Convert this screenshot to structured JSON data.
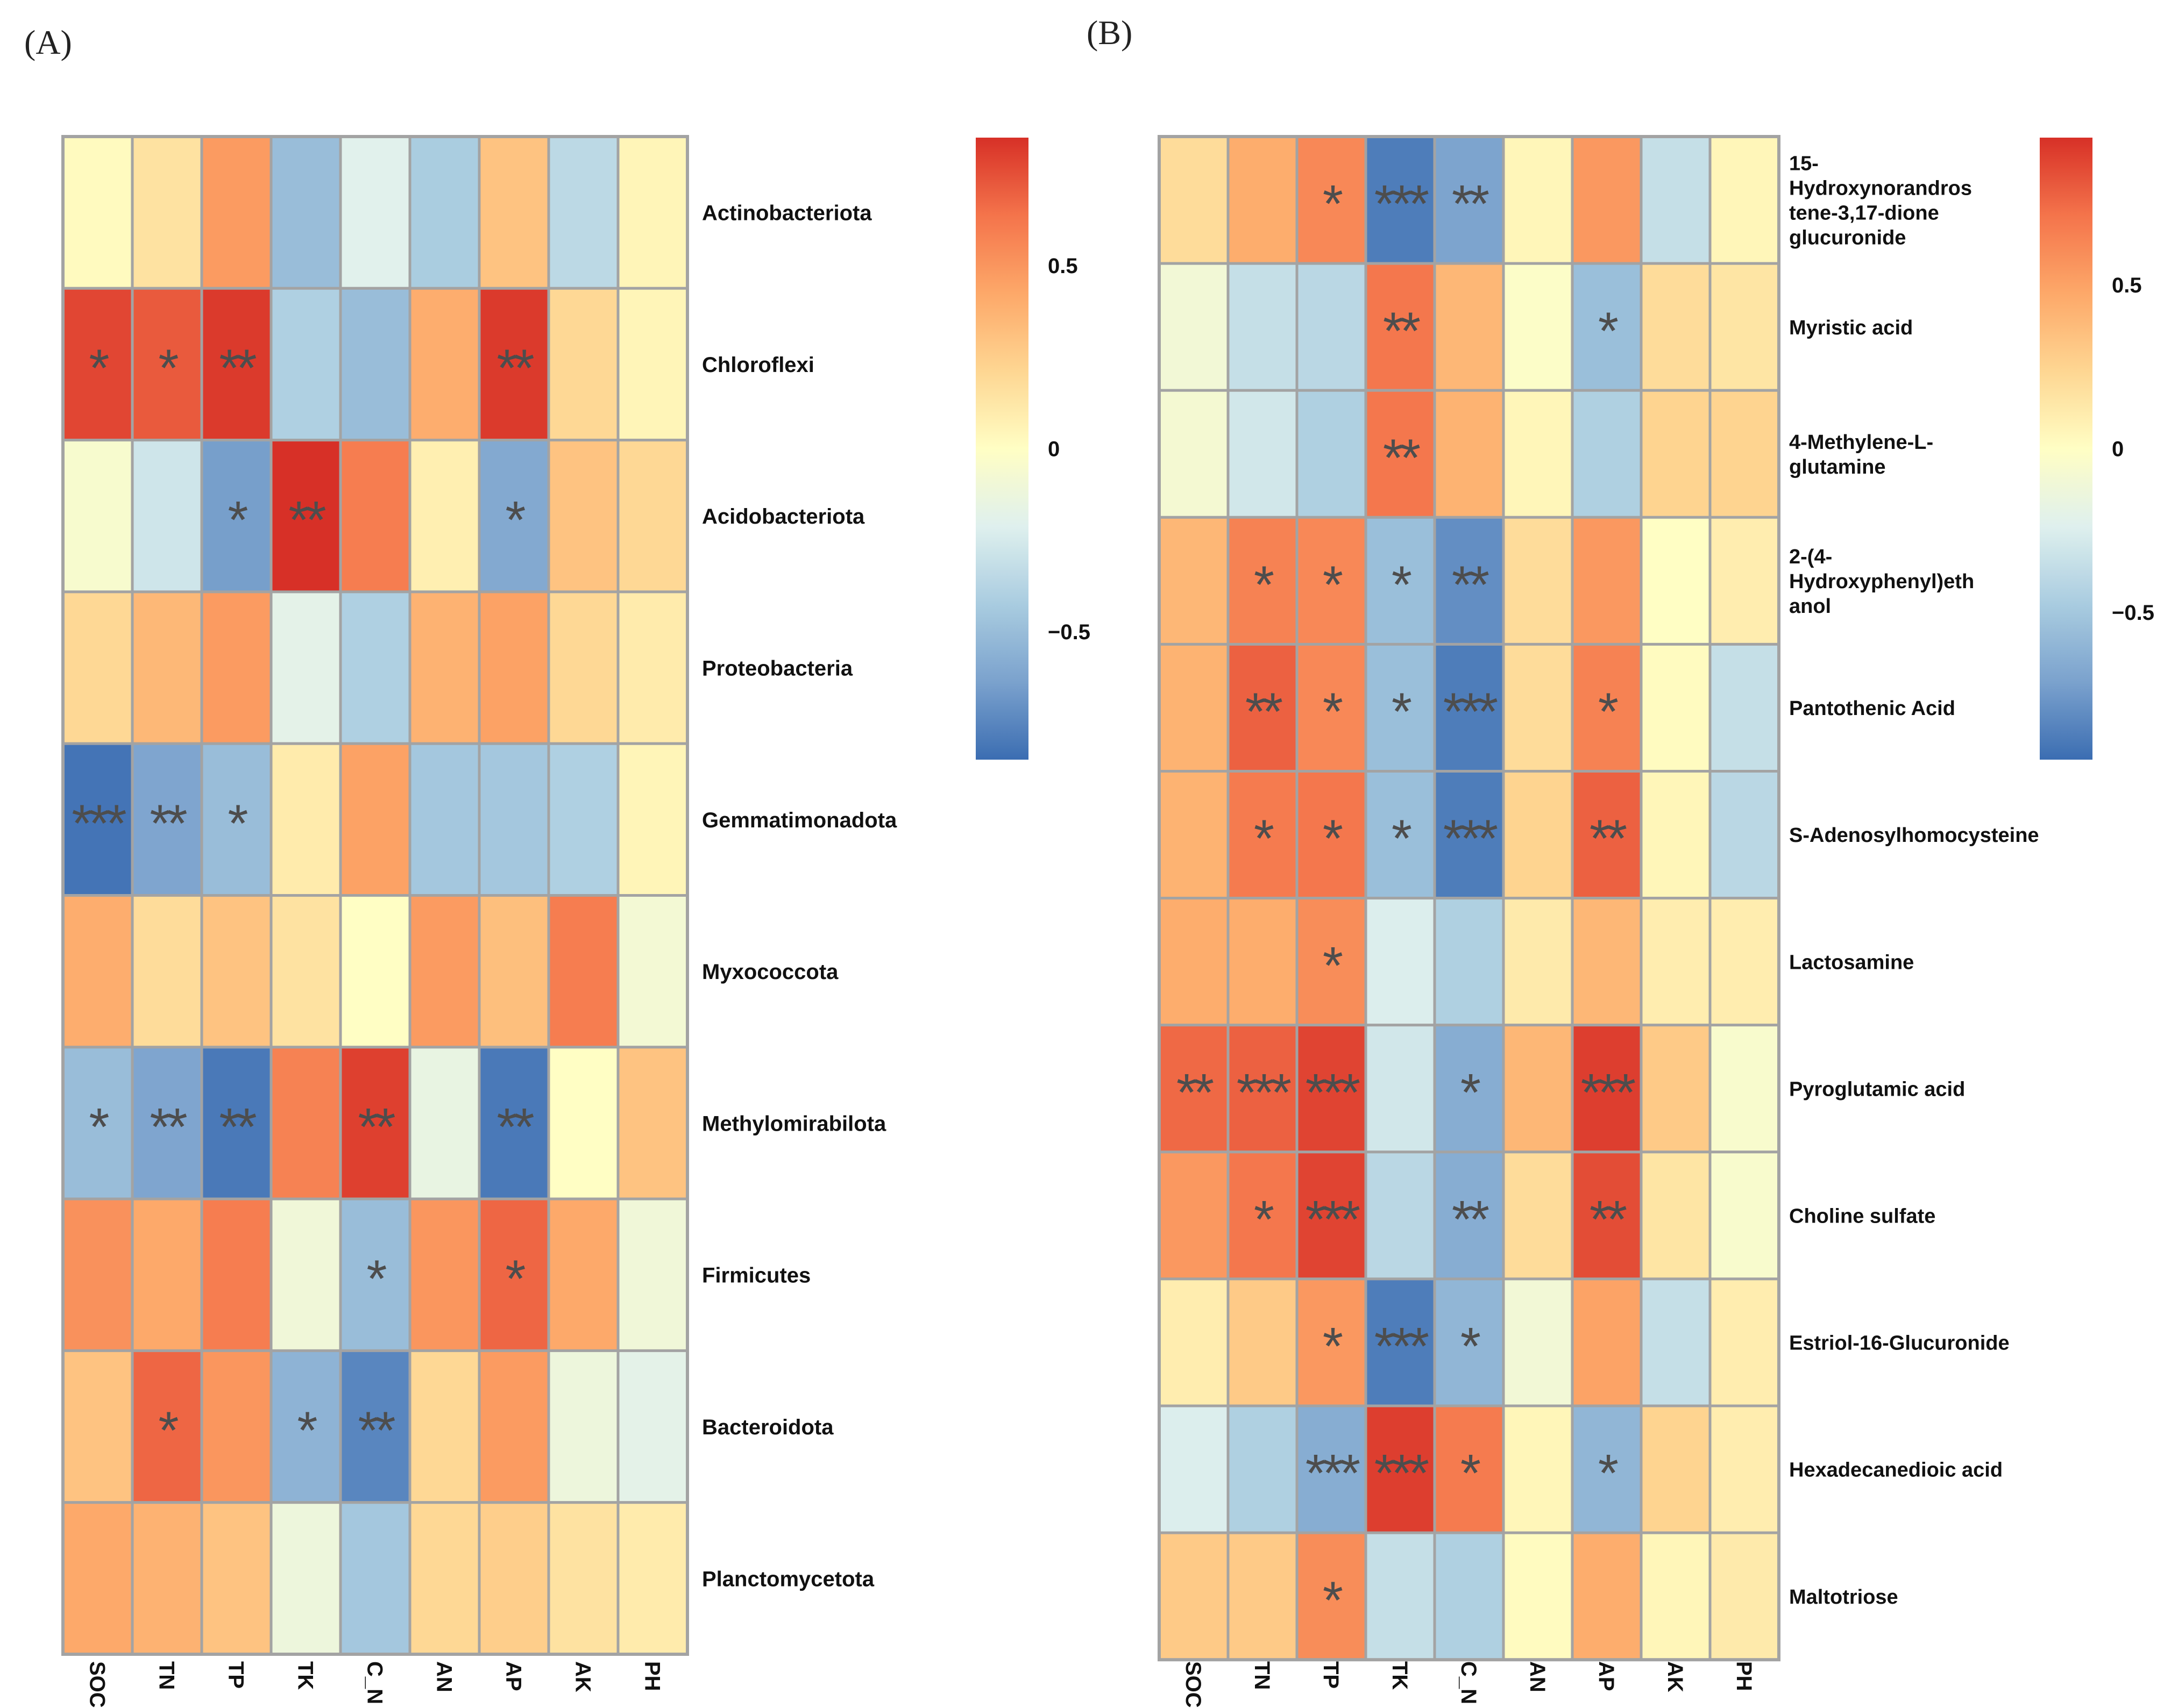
{
  "figure": {
    "panel_labels": [
      "(A)",
      "(B)"
    ]
  },
  "colors": {
    "grid_border": "#a3a3a3",
    "star": "#4d4d4d",
    "text": "#111111",
    "scale": [
      "#3b6db2",
      "#7ba2cd",
      "#a9cce0",
      "#dff0ee",
      "#fffec4",
      "#fed692",
      "#fda869",
      "#f4744b",
      "#d73027"
    ]
  },
  "chart_data": [
    {
      "type": "heatmap",
      "panel": "(A)",
      "title": "",
      "columns": [
        "SOC",
        "TN",
        "TP",
        "TK",
        "C_N",
        "AN",
        "AP",
        "AK",
        "PH"
      ],
      "rows": [
        "Actinobacteriota",
        "Chloroflexi",
        "Acidobacteriota",
        "Proteobacteria",
        "Gemmatimonadota",
        "Myxococcota",
        "Methylomirabilota",
        "Firmicutes",
        "Bacteroidota",
        "Planctomycetota"
      ],
      "values": [
        [
          0.02,
          0.15,
          0.48,
          -0.5,
          -0.2,
          -0.42,
          0.3,
          -0.35,
          0.05
        ],
        [
          0.78,
          0.72,
          0.82,
          -0.4,
          -0.5,
          0.4,
          0.82,
          0.2,
          0.05
        ],
        [
          -0.05,
          -0.28,
          -0.65,
          0.85,
          0.6,
          0.08,
          -0.6,
          0.3,
          0.2
        ],
        [
          0.2,
          0.35,
          0.48,
          -0.18,
          -0.4,
          0.38,
          0.45,
          0.2,
          0.1
        ],
        [
          -0.82,
          -0.62,
          -0.5,
          0.1,
          0.45,
          -0.45,
          -0.45,
          -0.4,
          0.05
        ],
        [
          0.4,
          0.18,
          0.3,
          0.15,
          0.0,
          0.48,
          0.32,
          0.6,
          -0.08
        ],
        [
          -0.5,
          -0.62,
          -0.8,
          0.58,
          0.8,
          -0.15,
          -0.8,
          0.0,
          0.3
        ],
        [
          0.52,
          0.42,
          0.6,
          -0.1,
          -0.5,
          0.5,
          0.68,
          0.42,
          -0.1
        ],
        [
          0.3,
          0.68,
          0.5,
          -0.55,
          -0.75,
          0.2,
          0.48,
          -0.12,
          -0.18
        ],
        [
          0.42,
          0.38,
          0.3,
          -0.12,
          -0.45,
          0.2,
          0.25,
          0.15,
          0.1
        ]
      ],
      "stars": [
        [
          "",
          "",
          "",
          "",
          "",
          "",
          "",
          "",
          ""
        ],
        [
          "*",
          "*",
          "**",
          "",
          "",
          "",
          "**",
          "",
          ""
        ],
        [
          "",
          "",
          "*",
          "**",
          "",
          "",
          "*",
          "",
          ""
        ],
        [
          "",
          "",
          "",
          "",
          "",
          "",
          "",
          "",
          ""
        ],
        [
          "***",
          "**",
          "*",
          "",
          "",
          "",
          "",
          "",
          ""
        ],
        [
          "",
          "",
          "",
          "",
          "",
          "",
          "",
          "",
          ""
        ],
        [
          "*",
          "**",
          "**",
          "",
          "**",
          "",
          "**",
          "",
          ""
        ],
        [
          "",
          "",
          "",
          "",
          "*",
          "",
          "*",
          "",
          ""
        ],
        [
          "",
          "*",
          "",
          "*",
          "**",
          "",
          "",
          "",
          ""
        ],
        [
          "",
          "",
          "",
          "",
          "",
          "",
          "",
          "",
          ""
        ]
      ],
      "colorbar": {
        "range": [
          -0.85,
          0.85
        ],
        "ticks": [
          0.5,
          0,
          -0.5
        ],
        "tick_labels": [
          "0.5",
          "0",
          "−0.5"
        ]
      }
    },
    {
      "type": "heatmap",
      "panel": "(B)",
      "title": "",
      "columns": [
        "SOC",
        "TN",
        "TP",
        "TK",
        "C_N",
        "AN",
        "AP",
        "AK",
        "PH"
      ],
      "rows": [
        [
          "15-",
          "Hydroxynorandros",
          "tene-3,17-dione",
          "glucuronide"
        ],
        [
          "Myristic acid"
        ],
        [
          "4-Methylene-L-",
          "glutamine"
        ],
        [
          "2-(4-",
          "Hydroxyphenyl)eth",
          "anol"
        ],
        [
          "Pantothenic Acid"
        ],
        [
          "S-Adenosylhomocysteine"
        ],
        [
          "Lactosamine"
        ],
        [
          "Pyroglutamic acid"
        ],
        [
          "Choline sulfate"
        ],
        [
          "Estriol-16-Glucuronide"
        ],
        [
          "Hexadecanedioic acid"
        ],
        [
          "Maltotriose"
        ]
      ],
      "values": [
        [
          0.2,
          0.45,
          0.62,
          -0.88,
          -0.7,
          0.05,
          0.55,
          -0.35,
          0.05
        ],
        [
          -0.1,
          -0.35,
          -0.4,
          0.7,
          0.4,
          -0.02,
          -0.55,
          0.2,
          0.15
        ],
        [
          -0.08,
          -0.3,
          -0.45,
          0.7,
          0.42,
          0.05,
          -0.45,
          0.25,
          0.25
        ],
        [
          0.4,
          0.65,
          0.62,
          -0.55,
          -0.8,
          0.2,
          0.55,
          0.0,
          0.1
        ],
        [
          0.42,
          0.78,
          0.62,
          -0.55,
          -0.88,
          0.2,
          0.65,
          0.02,
          -0.35
        ],
        [
          0.42,
          0.68,
          0.7,
          -0.55,
          -0.88,
          0.25,
          0.78,
          0.05,
          -0.4
        ],
        [
          0.45,
          0.45,
          0.6,
          -0.25,
          -0.45,
          0.12,
          0.4,
          0.1,
          0.1
        ],
        [
          0.75,
          0.78,
          0.88,
          -0.3,
          -0.65,
          0.4,
          0.9,
          0.3,
          -0.05
        ],
        [
          0.55,
          0.7,
          0.88,
          -0.4,
          -0.65,
          0.2,
          0.85,
          0.15,
          -0.05
        ],
        [
          0.1,
          0.3,
          0.55,
          -0.88,
          -0.6,
          -0.1,
          0.5,
          -0.35,
          0.1
        ],
        [
          -0.25,
          -0.45,
          -0.65,
          0.9,
          0.68,
          0.05,
          -0.6,
          0.25,
          0.1
        ],
        [
          0.3,
          0.3,
          0.6,
          -0.35,
          -0.45,
          0.02,
          0.45,
          0.05,
          0.12
        ]
      ],
      "stars": [
        [
          "",
          "",
          "*",
          "***",
          "**",
          "",
          "",
          "",
          ""
        ],
        [
          "",
          "",
          "",
          "**",
          "",
          "",
          "*",
          "",
          ""
        ],
        [
          "",
          "",
          "",
          "**",
          "",
          "",
          "",
          "",
          ""
        ],
        [
          "",
          "*",
          "*",
          "*",
          "**",
          "",
          "",
          "",
          ""
        ],
        [
          "",
          "**",
          "*",
          "*",
          "***",
          "",
          "*",
          "",
          ""
        ],
        [
          "",
          "*",
          "*",
          "*",
          "***",
          "",
          "**",
          "",
          ""
        ],
        [
          "",
          "",
          "*",
          "",
          "",
          "",
          "",
          "",
          ""
        ],
        [
          "**",
          "***",
          "***",
          "",
          "*",
          "",
          "***",
          "",
          ""
        ],
        [
          "",
          "*",
          "***",
          "",
          "**",
          "",
          "**",
          "",
          ""
        ],
        [
          "",
          "",
          "*",
          "***",
          "*",
          "",
          "",
          "",
          ""
        ],
        [
          "",
          "",
          "***",
          "***",
          "*",
          "",
          "*",
          "",
          ""
        ],
        [
          "",
          "",
          "*",
          "",
          "",
          "",
          "",
          "",
          ""
        ]
      ],
      "colorbar": {
        "range": [
          -0.95,
          0.95
        ],
        "ticks": [
          0.5,
          0,
          -0.5
        ],
        "tick_labels": [
          "0.5",
          "0",
          "−0.5"
        ]
      }
    }
  ]
}
